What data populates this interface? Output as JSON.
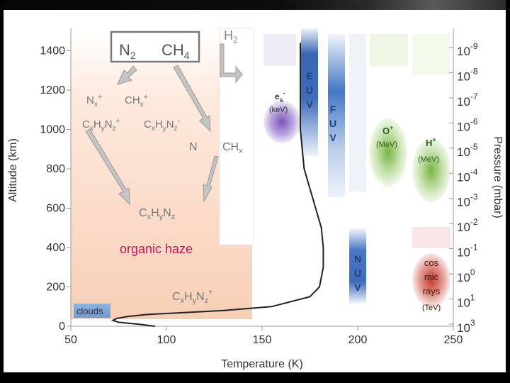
{
  "axes": {
    "x_title": "Temperature (K)",
    "y_left_title": "Altitude (km)",
    "y_right_title": "Pressure (mbar)",
    "x_ticks": [
      "50",
      "100",
      "150",
      "200",
      "250"
    ],
    "y_left_ticks": [
      "1400",
      "1200",
      "1000",
      "800",
      "600",
      "400",
      "200",
      "0"
    ],
    "y_right_ticks": [
      {
        "base": "10",
        "exp": "-9"
      },
      {
        "base": "10",
        "exp": "-8"
      },
      {
        "base": "10",
        "exp": "-7"
      },
      {
        "base": "10",
        "exp": "-6"
      },
      {
        "base": "10",
        "exp": "-5"
      },
      {
        "base": "10",
        "exp": "-4"
      },
      {
        "base": "10",
        "exp": "-3"
      },
      {
        "base": "10",
        "exp": "-2"
      },
      {
        "base": "10",
        "exp": "-1"
      },
      {
        "base": "10",
        "exp": "0"
      },
      {
        "base": "10",
        "exp": "1"
      },
      {
        "base": "10",
        "exp": "3"
      }
    ]
  },
  "chemistry": {
    "n2": {
      "base": "N",
      "sub": "2"
    },
    "ch4": {
      "base": "CH",
      "sub": "4"
    },
    "h2": {
      "base": "H",
      "sub": "2"
    },
    "nx_plus": {
      "base": "N",
      "sub": "x",
      "sup": "+"
    },
    "chx_plus": {
      "base": "CH",
      "sub": "x",
      "sup": "+"
    },
    "cxhynz_plus": {
      "parts": [
        "C",
        "x",
        "H",
        "y",
        "N",
        "z"
      ],
      "sup": "+"
    },
    "cxhynz_minus": {
      "parts": [
        "C",
        "x",
        "H",
        "y",
        "N",
        "z"
      ],
      "sup": "-"
    },
    "n": "N",
    "chx": {
      "base": "CH",
      "sub": "x"
    },
    "cxhynz": {
      "parts": [
        "C",
        "x",
        "H",
        "y",
        "N",
        "z"
      ]
    },
    "organic_haze": "organic haze",
    "cxhynz_plus_low": {
      "parts": [
        "C",
        "x",
        "H",
        "y",
        "N",
        "z"
      ],
      "sup": "+"
    },
    "clouds": "clouds"
  },
  "radiation": {
    "electrons": {
      "base": "e",
      "sub": "s",
      "sup": "-",
      "unit": "(keV)"
    },
    "euv": [
      "E",
      "U",
      "V"
    ],
    "fuv": [
      "F",
      "U",
      "V"
    ],
    "nuv": [
      "N",
      "U",
      "V"
    ],
    "oxygen": {
      "base": "O",
      "sup": "+",
      "unit": "(MeV)"
    },
    "proton": {
      "base": "H",
      "sup": "+",
      "unit": "(MeV)"
    },
    "cosmic": [
      "cos",
      "mic",
      "rays"
    ],
    "cosmic_unit": "(TeV)"
  },
  "temperature_profile": {
    "units": {
      "x": "K",
      "y": "km"
    },
    "points": [
      [
        94,
        0
      ],
      [
        86,
        10
      ],
      [
        75,
        20
      ],
      [
        72,
        30
      ],
      [
        74,
        40
      ],
      [
        80,
        50
      ],
      [
        90,
        60
      ],
      [
        110,
        70
      ],
      [
        130,
        80
      ],
      [
        155,
        100
      ],
      [
        175,
        150
      ],
      [
        180,
        200
      ],
      [
        182,
        300
      ],
      [
        182,
        400
      ],
      [
        181,
        500
      ],
      [
        178,
        600
      ],
      [
        175,
        700
      ],
      [
        172,
        800
      ],
      [
        171,
        900
      ],
      [
        170,
        1000
      ],
      [
        170,
        1200
      ],
      [
        170,
        1440
      ]
    ]
  },
  "colors": {
    "haze_peach": "#fbd8c4",
    "euv_blue": "#2e5fae",
    "fuv_blue": "#3b6fc0",
    "green": "#6aa83a",
    "red": "#c0392b",
    "arrow_grey": "#b5b5b5",
    "cloud_blue": "#7ba3d6"
  }
}
